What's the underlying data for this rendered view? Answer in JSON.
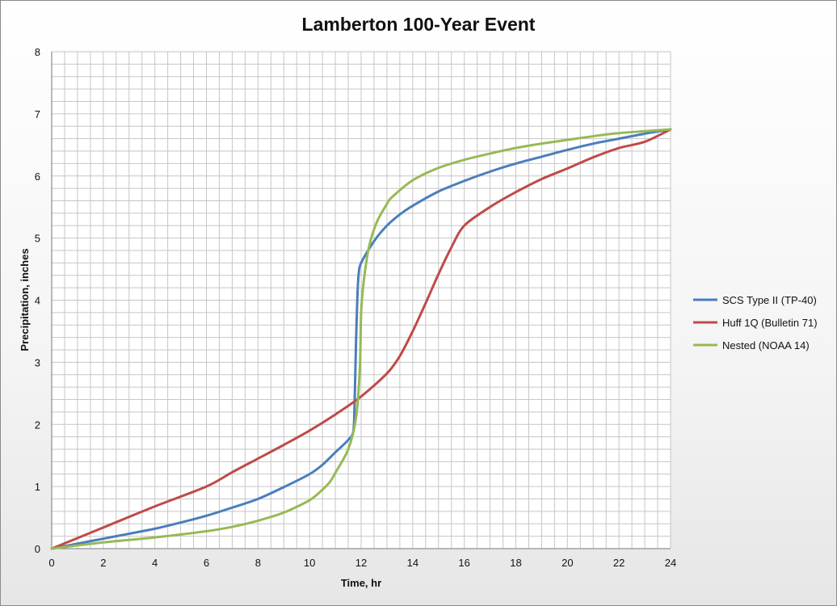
{
  "chart_data": {
    "type": "line",
    "title": "Lamberton 100-Year Event",
    "xlabel": "Time, hr",
    "ylabel": "Precipitation, inches",
    "xlim": [
      0,
      24
    ],
    "ylim": [
      0,
      8
    ],
    "x_ticks": [
      "0",
      "2",
      "4",
      "6",
      "8",
      "10",
      "12",
      "14",
      "16",
      "18",
      "20",
      "22",
      "24"
    ],
    "y_ticks": [
      "0",
      "1",
      "2",
      "3",
      "4",
      "5",
      "6",
      "7",
      "8"
    ],
    "grid": true,
    "legend_position": "right",
    "series": [
      {
        "name": "SCS Type II (TP-40)",
        "color": "#4a7ebb",
        "points": [
          [
            0,
            0
          ],
          [
            1,
            0.08
          ],
          [
            2,
            0.16
          ],
          [
            3,
            0.24
          ],
          [
            4,
            0.32
          ],
          [
            5,
            0.42
          ],
          [
            6,
            0.53
          ],
          [
            7,
            0.66
          ],
          [
            8,
            0.8
          ],
          [
            9,
            0.99
          ],
          [
            10,
            1.2
          ],
          [
            10.5,
            1.35
          ],
          [
            11,
            1.55
          ],
          [
            11.5,
            1.75
          ],
          [
            11.7,
            1.9
          ],
          [
            11.75,
            2.4
          ],
          [
            11.8,
            3.3
          ],
          [
            11.85,
            4.0
          ],
          [
            11.9,
            4.4
          ],
          [
            12,
            4.6
          ],
          [
            12.5,
            4.95
          ],
          [
            13,
            5.2
          ],
          [
            13.5,
            5.38
          ],
          [
            14,
            5.52
          ],
          [
            15,
            5.75
          ],
          [
            16,
            5.92
          ],
          [
            17,
            6.07
          ],
          [
            18,
            6.2
          ],
          [
            19,
            6.31
          ],
          [
            20,
            6.42
          ],
          [
            21,
            6.52
          ],
          [
            22,
            6.6
          ],
          [
            23,
            6.68
          ],
          [
            24,
            6.75
          ]
        ]
      },
      {
        "name": "Huff 1Q (Bulletin 71)",
        "color": "#be4b48",
        "points": [
          [
            0,
            0
          ],
          [
            2,
            0.34
          ],
          [
            4,
            0.68
          ],
          [
            6,
            1.0
          ],
          [
            7,
            1.23
          ],
          [
            8,
            1.45
          ],
          [
            9,
            1.67
          ],
          [
            10,
            1.9
          ],
          [
            11,
            2.16
          ],
          [
            12,
            2.45
          ],
          [
            13,
            2.82
          ],
          [
            13.5,
            3.1
          ],
          [
            14,
            3.5
          ],
          [
            14.5,
            3.95
          ],
          [
            15,
            4.42
          ],
          [
            15.5,
            4.85
          ],
          [
            16,
            5.2
          ],
          [
            17,
            5.5
          ],
          [
            18,
            5.74
          ],
          [
            19,
            5.95
          ],
          [
            20,
            6.12
          ],
          [
            21,
            6.3
          ],
          [
            22,
            6.45
          ],
          [
            23,
            6.55
          ],
          [
            24,
            6.75
          ]
        ]
      },
      {
        "name": "Nested (NOAA 14)",
        "color": "#98b954",
        "points": [
          [
            0,
            0
          ],
          [
            2,
            0.1
          ],
          [
            4,
            0.18
          ],
          [
            6,
            0.28
          ],
          [
            7,
            0.35
          ],
          [
            8,
            0.45
          ],
          [
            9,
            0.58
          ],
          [
            10,
            0.78
          ],
          [
            10.5,
            0.95
          ],
          [
            10.8,
            1.08
          ],
          [
            11,
            1.22
          ],
          [
            11.5,
            1.6
          ],
          [
            11.8,
            2.1
          ],
          [
            11.95,
            2.9
          ],
          [
            12,
            3.8
          ],
          [
            12.1,
            4.3
          ],
          [
            12.3,
            4.85
          ],
          [
            12.6,
            5.25
          ],
          [
            13,
            5.55
          ],
          [
            13.2,
            5.66
          ],
          [
            14,
            5.93
          ],
          [
            15,
            6.13
          ],
          [
            16,
            6.26
          ],
          [
            17,
            6.36
          ],
          [
            18,
            6.45
          ],
          [
            19,
            6.52
          ],
          [
            20,
            6.58
          ],
          [
            21,
            6.64
          ],
          [
            22,
            6.69
          ],
          [
            23,
            6.72
          ],
          [
            24,
            6.75
          ]
        ]
      }
    ]
  }
}
